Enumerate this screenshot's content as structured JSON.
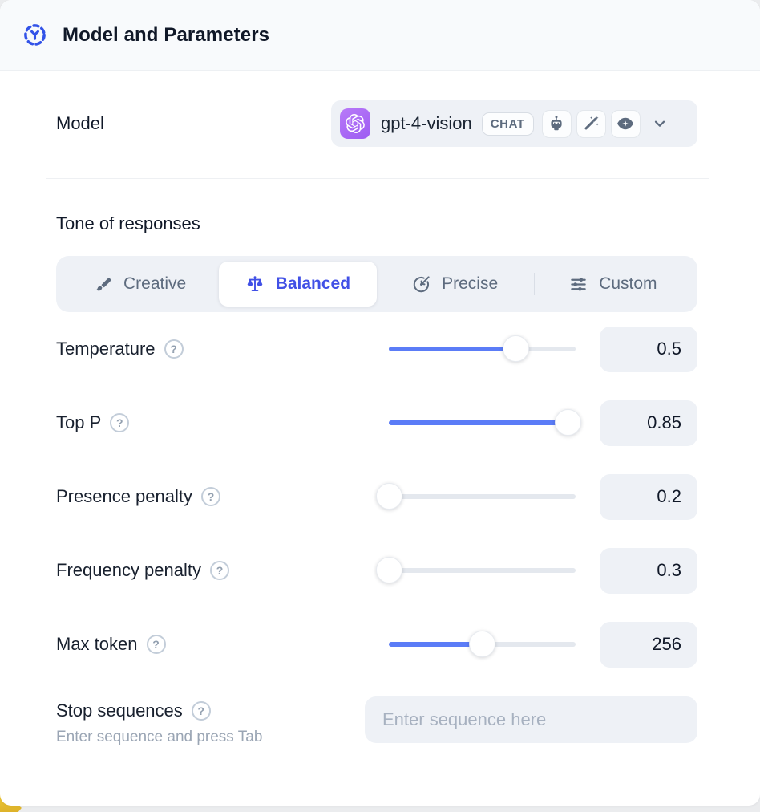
{
  "header": {
    "title": "Model and Parameters"
  },
  "model": {
    "label": "Model",
    "name": "gpt-4-vision",
    "badge": "CHAT",
    "capabilities": [
      "robot",
      "magic-wand",
      "vision-eye"
    ]
  },
  "tone": {
    "heading": "Tone of responses",
    "tabs": [
      {
        "label": "Creative",
        "icon": "paintbrush",
        "active": false
      },
      {
        "label": "Balanced",
        "icon": "balance-scale",
        "active": true
      },
      {
        "label": "Precise",
        "icon": "target-arrow",
        "active": false
      },
      {
        "label": "Custom",
        "icon": "sliders",
        "active": false
      }
    ]
  },
  "parameters": [
    {
      "label": "Temperature",
      "value": "0.5",
      "fill": 0.68
    },
    {
      "label": "Top P",
      "value": "0.85",
      "fill": 0.96
    },
    {
      "label": "Presence penalty",
      "value": "0.2",
      "fill": 0
    },
    {
      "label": "Frequency penalty",
      "value": "0.3",
      "fill": 0
    },
    {
      "label": "Max token",
      "value": "256",
      "fill": 0.5
    }
  ],
  "stop": {
    "label": "Stop sequences",
    "hint": "Enter sequence and press Tab",
    "placeholder": "Enter sequence here"
  },
  "help_glyph": "?",
  "colors": {
    "accent_blue": "#4150e6",
    "slider_blue": "#5b7cf7",
    "header_icon_blue": "#3353e8",
    "logo_purple": "#a56bf7",
    "panel_gray": "#eef1f6",
    "text_dark": "#101828",
    "text_muted": "#5d6b7e",
    "yellow_accent": "#e6b91f"
  }
}
